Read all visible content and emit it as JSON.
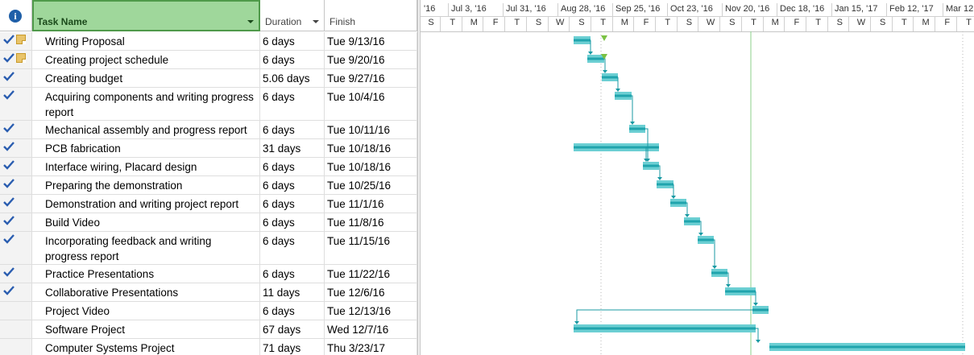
{
  "header": {
    "indicators_icon": "info-icon",
    "task_name_label": "Task Name",
    "duration_label": "Duration",
    "finish_label": "Finish"
  },
  "tasks": [
    {
      "name": "Writing Proposal",
      "duration": "6 days",
      "finish": "Tue 9/13/16",
      "done": true,
      "note": true
    },
    {
      "name": "Creating project schedule",
      "duration": "6 days",
      "finish": "Tue 9/20/16",
      "done": true,
      "note": true
    },
    {
      "name": "Creating budget",
      "duration": "5.06 days",
      "finish": "Tue 9/27/16",
      "done": true,
      "note": false
    },
    {
      "name": "Acquiring components and writing progress report",
      "duration": "6 days",
      "finish": "Tue 10/4/16",
      "done": true,
      "note": false
    },
    {
      "name": "Mechanical assembly and progress report",
      "duration": "6 days",
      "finish": "Tue 10/11/16",
      "done": true,
      "note": false
    },
    {
      "name": "PCB fabrication",
      "duration": "31 days",
      "finish": "Tue 10/18/16",
      "done": true,
      "note": false
    },
    {
      "name": "Interface wiring, Placard design",
      "duration": "6 days",
      "finish": "Tue 10/18/16",
      "done": true,
      "note": false
    },
    {
      "name": "Preparing the demonstration",
      "duration": "6 days",
      "finish": "Tue 10/25/16",
      "done": true,
      "note": false
    },
    {
      "name": "Demonstration and writing project report",
      "duration": "6 days",
      "finish": "Tue 11/1/16",
      "done": true,
      "note": false
    },
    {
      "name": "Build Video",
      "duration": "6 days",
      "finish": "Tue 11/8/16",
      "done": true,
      "note": false
    },
    {
      "name": "Incorporating feedback and writing progress report",
      "duration": "6 days",
      "finish": "Tue 11/15/16",
      "done": true,
      "note": false
    },
    {
      "name": "Practice Presentations",
      "duration": "6 days",
      "finish": "Tue 11/22/16",
      "done": true,
      "note": false
    },
    {
      "name": "Collaborative Presentations",
      "duration": "11 days",
      "finish": "Tue 12/6/16",
      "done": true,
      "note": false
    },
    {
      "name": "Project Video",
      "duration": "6 days",
      "finish": "Tue 12/13/16",
      "done": false,
      "note": false
    },
    {
      "name": "Software Project",
      "duration": "67 days",
      "finish": "Wed 12/7/16",
      "done": false,
      "note": false
    },
    {
      "name": "Computer Systems Project",
      "duration": "71 days",
      "finish": "Thu 3/23/17",
      "done": false,
      "note": false
    }
  ],
  "timeline": {
    "top_labels": [
      "'16",
      "Jul 3, '16",
      "Jul 31, '16",
      "Aug 28, '16",
      "Sep 25, '16",
      "Oct 23, '16",
      "Nov 20, '16",
      "Dec 18, '16",
      "Jan 15, '17",
      "Feb 12, '17",
      "Mar 12,"
    ],
    "day_labels": [
      "S",
      "T",
      "M",
      "F",
      "T",
      "S",
      "W",
      "S",
      "T",
      "M",
      "F",
      "T",
      "S",
      "W",
      "S",
      "T",
      "M",
      "F",
      "T",
      "S",
      "W",
      "S",
      "T",
      "M",
      "F",
      "T"
    ]
  },
  "colors": {
    "bar_fill": "#6ccfd3",
    "bar_edge": "#20a4ad",
    "link": "#1a9aa3",
    "status_line": "#8bd28a",
    "check": "#2a5db0",
    "header_selected": "#9fd79b"
  }
}
